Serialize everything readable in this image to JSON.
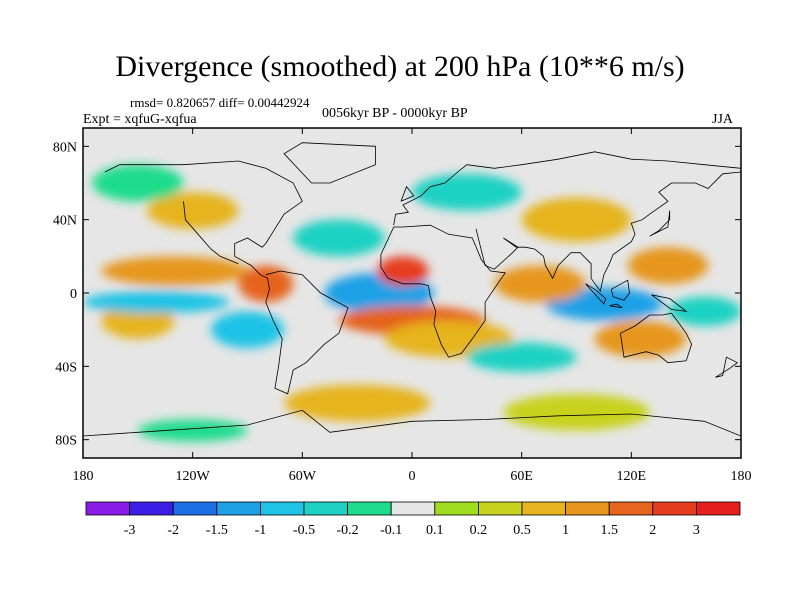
{
  "title": "Divergence (smoothed) at 200 hPa (10**6 m/s)",
  "stats_line": "rmsd= 0.820657 diff= 0.00442924",
  "experiment": "Expt = xqfuG-xqfua",
  "period": "0056kyr BP - 0000kyr BP",
  "season": "JJA",
  "chart_data": {
    "type": "heatmap",
    "title": "Divergence (smoothed) at 200 hPa (10**6 m/s)",
    "subtitle": "0056kyr BP - 0000kyr BP",
    "xlabel": "",
    "ylabel": "",
    "xlim": [
      -180,
      180
    ],
    "ylim": [
      -90,
      90
    ],
    "x_ticks": [
      {
        "value": -180,
        "label": "180"
      },
      {
        "value": -120,
        "label": "120W"
      },
      {
        "value": -60,
        "label": "60W"
      },
      {
        "value": 0,
        "label": "0"
      },
      {
        "value": 60,
        "label": "60E"
      },
      {
        "value": 120,
        "label": "120E"
      },
      {
        "value": 180,
        "label": "180"
      }
    ],
    "y_ticks": [
      {
        "value": 80,
        "label": "80N"
      },
      {
        "value": 40,
        "label": "40N"
      },
      {
        "value": 0,
        "label": "0"
      },
      {
        "value": -40,
        "label": "40S"
      },
      {
        "value": -80,
        "label": "80S"
      }
    ],
    "colorbar": {
      "levels": [
        "-3",
        "-2",
        "-1.5",
        "-1",
        "-0.5",
        "-0.2",
        "-0.1",
        "0.1",
        "0.2",
        "0.5",
        "1",
        "1.5",
        "2",
        "3"
      ],
      "colors": [
        "#8a1ee8",
        "#3c1ee6",
        "#1e6ee6",
        "#1ea0e6",
        "#1ec3e6",
        "#1ed2c3",
        "#1edc8c",
        "#e6e6e6",
        "#a0dc1e",
        "#c8d21e",
        "#e6b41e",
        "#e6961e",
        "#e6641e",
        "#e63c1e",
        "#e61e1e"
      ]
    },
    "field_blobs": [
      {
        "lon": -18,
        "lat": 0,
        "rlon": 22,
        "rlat": 7,
        "value": -3
      },
      {
        "lon": -18,
        "lat": 0,
        "rlon": 30,
        "rlat": 11,
        "value": -1.5
      },
      {
        "lon": 105,
        "lat": -6,
        "rlon": 18,
        "rlat": 5,
        "value": -3
      },
      {
        "lon": 105,
        "lat": -6,
        "rlon": 32,
        "rlat": 9,
        "value": -1.5
      },
      {
        "lon": -5,
        "lat": 12,
        "rlon": 14,
        "rlat": 8,
        "value": 2
      },
      {
        "lon": 0,
        "lat": -15,
        "rlon": 40,
        "rlat": 8,
        "value": 1.5
      },
      {
        "lon": -130,
        "lat": 12,
        "rlon": 40,
        "rlat": 8,
        "value": 1
      },
      {
        "lon": -80,
        "lat": 5,
        "rlon": 15,
        "rlat": 10,
        "value": 1.5
      },
      {
        "lon": 20,
        "lat": -25,
        "rlon": 35,
        "rlat": 10,
        "value": 0.5
      },
      {
        "lon": 70,
        "lat": 5,
        "rlon": 25,
        "rlat": 10,
        "value": 1
      },
      {
        "lon": 140,
        "lat": 15,
        "rlon": 22,
        "rlat": 10,
        "value": 1
      },
      {
        "lon": 125,
        "lat": -25,
        "rlon": 25,
        "rlat": 10,
        "value": 1
      },
      {
        "lon": -150,
        "lat": -15,
        "rlon": 20,
        "rlat": 10,
        "value": 0.5
      },
      {
        "lon": -120,
        "lat": 45,
        "rlon": 25,
        "rlat": 10,
        "value": 0.5
      },
      {
        "lon": 90,
        "lat": 40,
        "rlon": 30,
        "rlat": 12,
        "value": 0.5
      },
      {
        "lon": -140,
        "lat": -5,
        "rlon": 40,
        "rlat": 6,
        "value": -1
      },
      {
        "lon": -90,
        "lat": -20,
        "rlon": 20,
        "rlat": 10,
        "value": -1
      },
      {
        "lon": -40,
        "lat": 30,
        "rlon": 25,
        "rlat": 10,
        "value": -0.5
      },
      {
        "lon": 60,
        "lat": -35,
        "rlon": 30,
        "rlat": 8,
        "value": -0.5
      },
      {
        "lon": 160,
        "lat": -10,
        "rlon": 20,
        "rlat": 8,
        "value": -0.5
      },
      {
        "lon": 30,
        "lat": 55,
        "rlon": 30,
        "rlat": 10,
        "value": -0.5
      },
      {
        "lon": -150,
        "lat": 60,
        "rlon": 25,
        "rlat": 10,
        "value": -0.2
      },
      {
        "lon": -30,
        "lat": -60,
        "rlon": 40,
        "rlat": 10,
        "value": 0.5
      },
      {
        "lon": 90,
        "lat": -65,
        "rlon": 40,
        "rlat": 10,
        "value": 0.2
      },
      {
        "lon": -120,
        "lat": -75,
        "rlon": 30,
        "rlat": 6,
        "value": -0.2
      }
    ]
  }
}
